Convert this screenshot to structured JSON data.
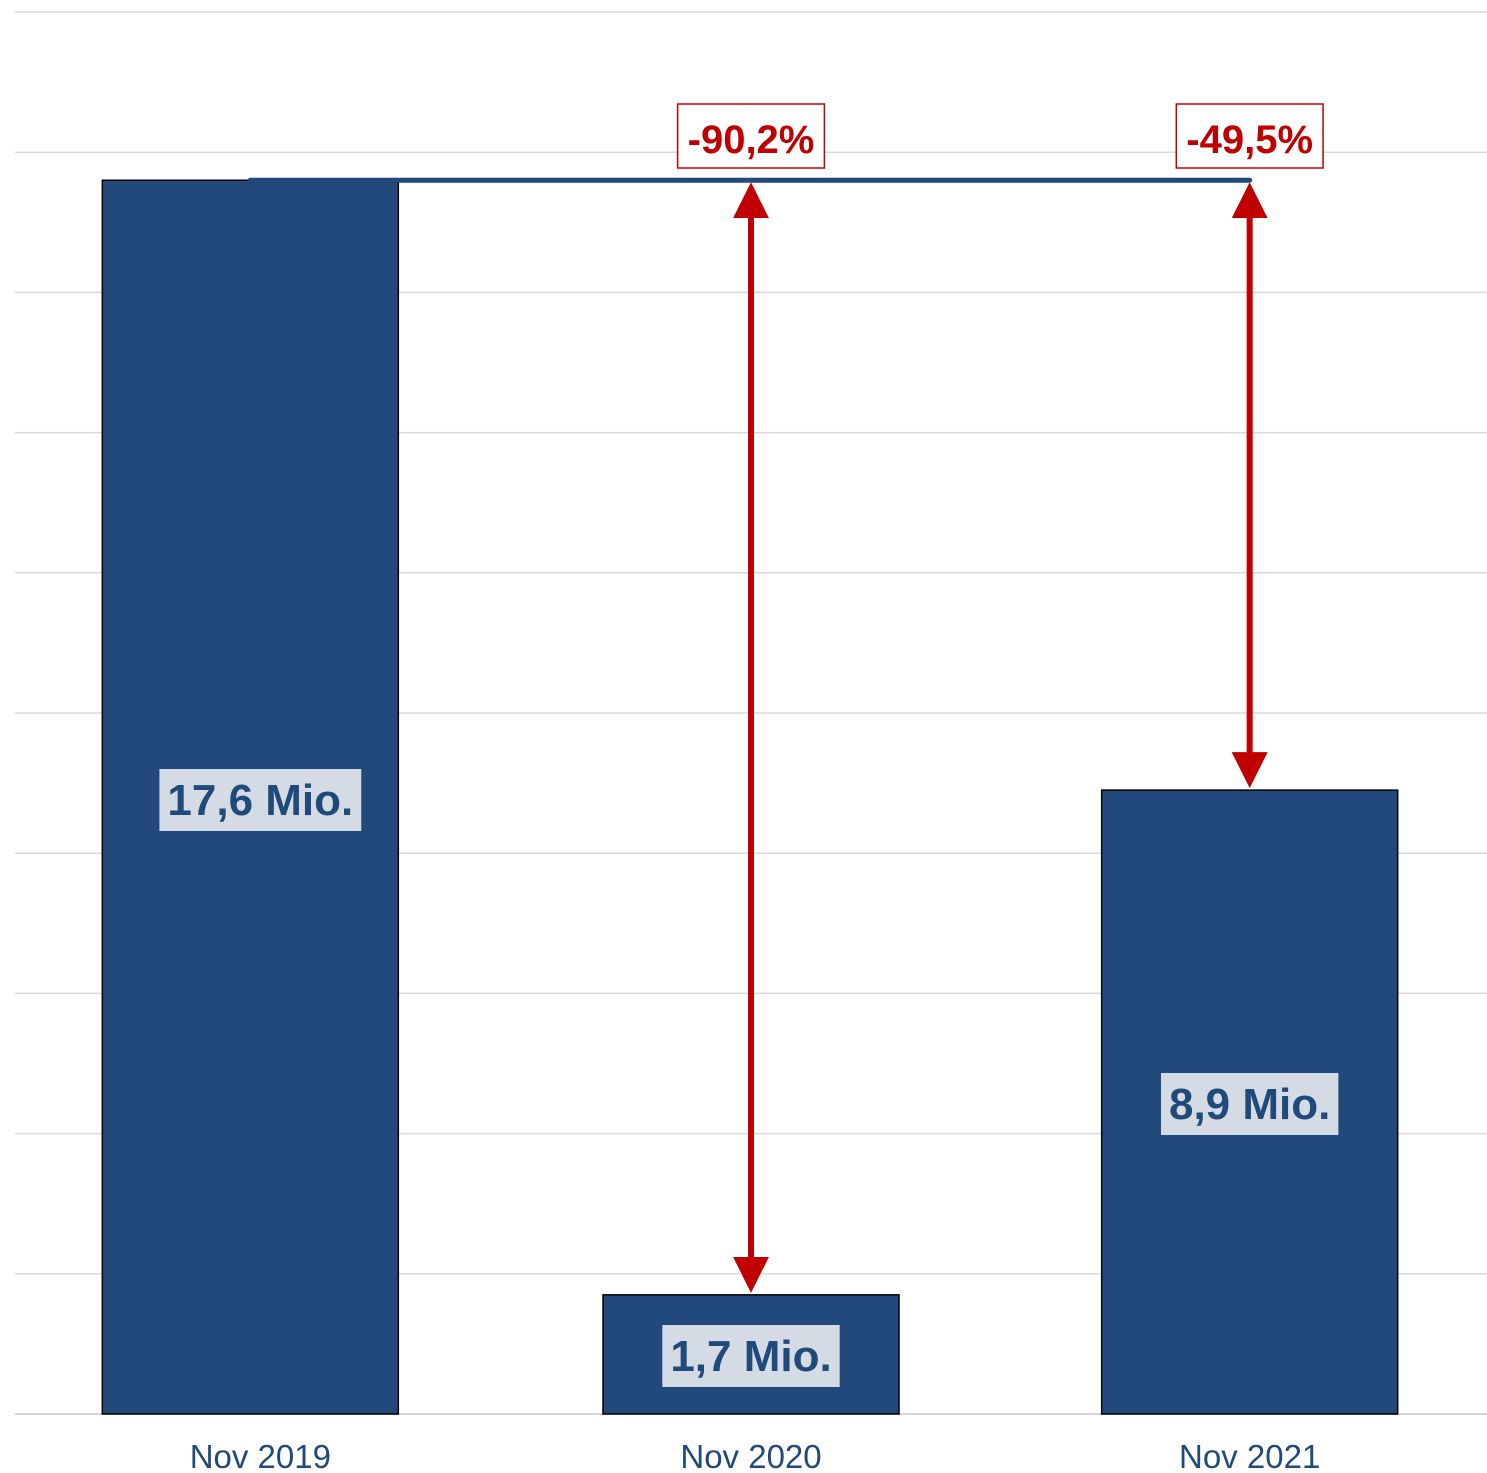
{
  "chart_data": {
    "type": "bar",
    "categories": [
      "Nov 2019",
      "Nov 2020",
      "Nov 2021"
    ],
    "values": [
      17.6,
      1.7,
      8.9
    ],
    "value_labels": [
      "17,6 Mio.",
      "1,7 Mio.",
      "8,9 Mio."
    ],
    "changes": [
      {
        "from": "Nov 2019",
        "to": "Nov 2020",
        "label": "-90,2%"
      },
      {
        "from": "Nov 2019",
        "to": "Nov 2021",
        "label": "-49,5%"
      }
    ],
    "ylim": [
      0,
      20
    ],
    "ytick_step": 2,
    "grid": true,
    "title": "",
    "xlabel": "",
    "ylabel": "",
    "colors": {
      "bar": "#21497b",
      "reference_line": "#21497b",
      "arrow": "#c00000",
      "label_box": "#d4dbe5",
      "grid": "#d9d9d9"
    }
  }
}
